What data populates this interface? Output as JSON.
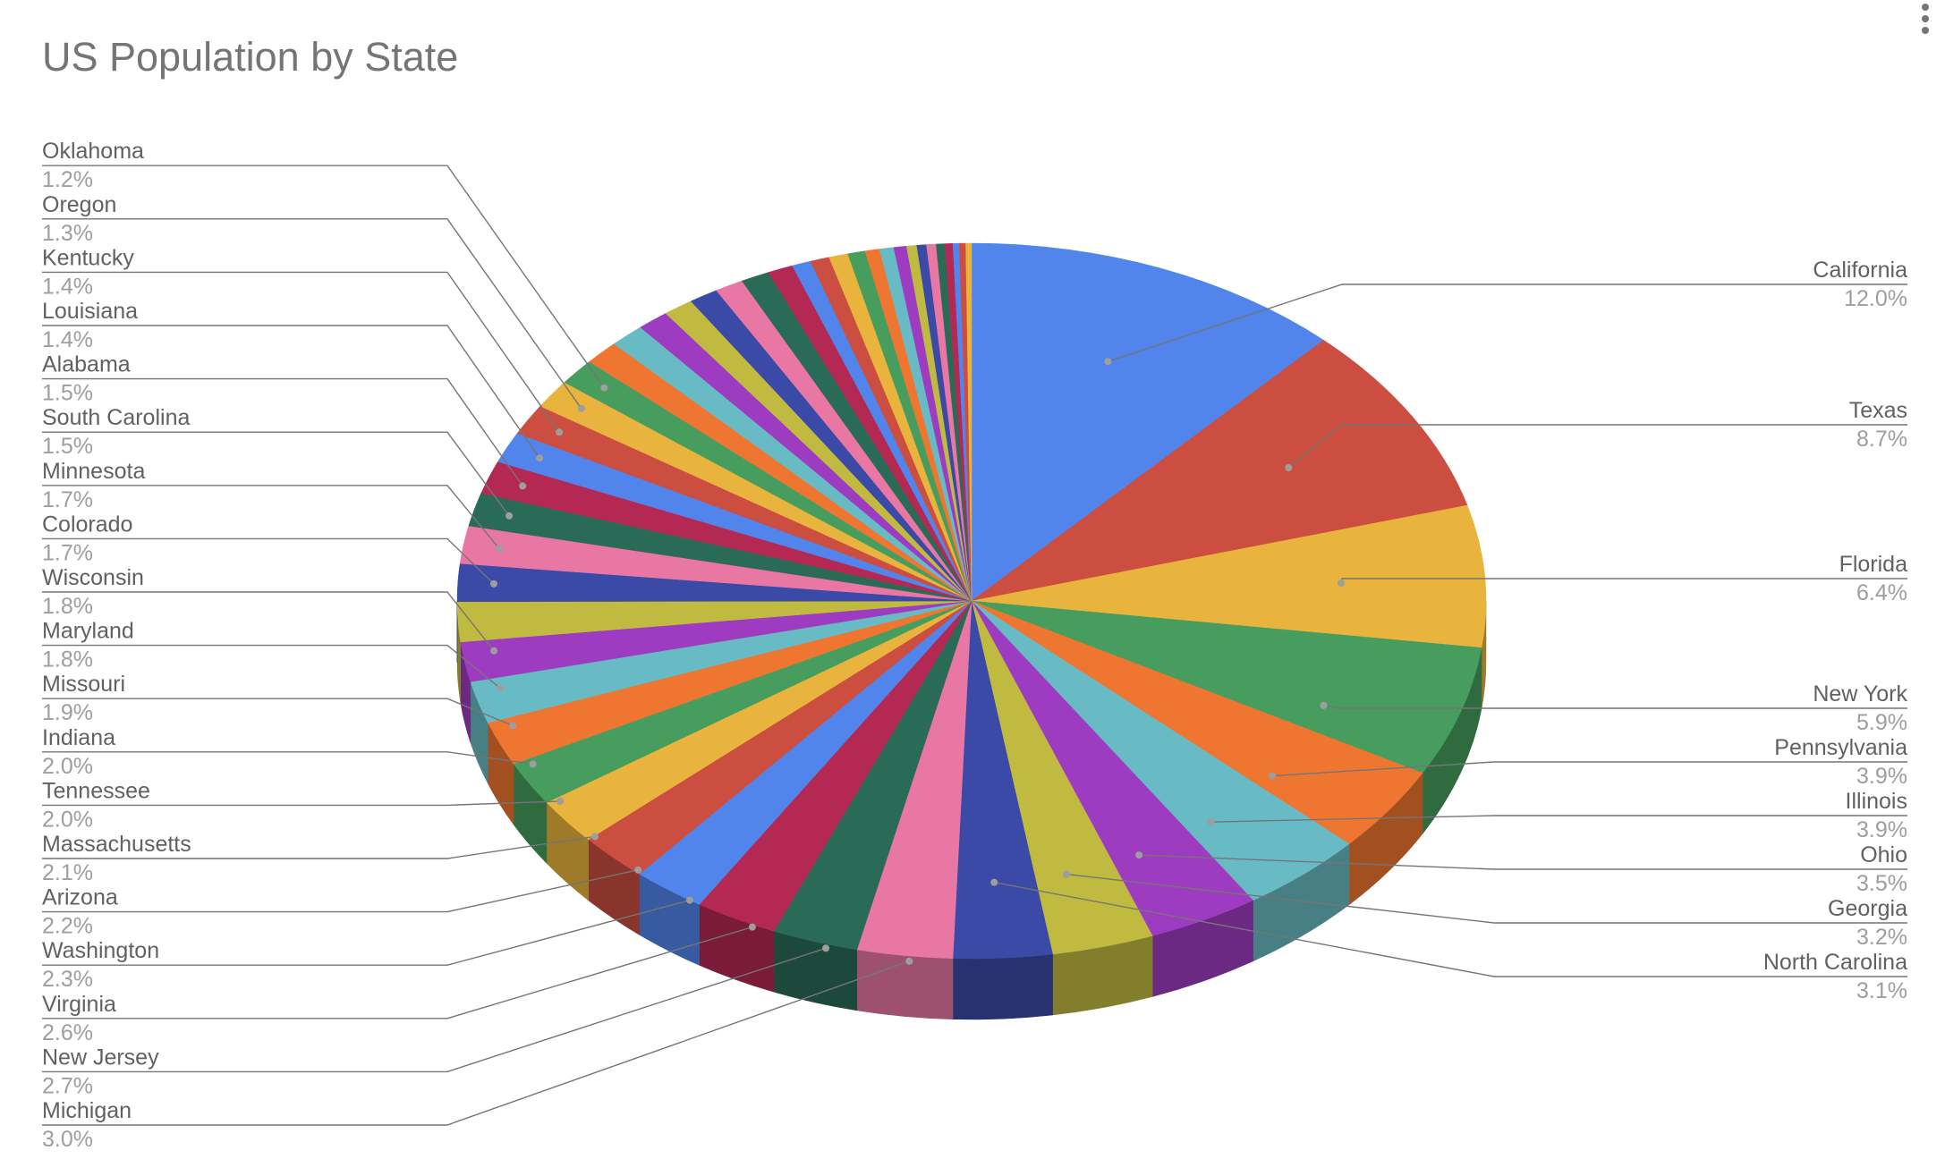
{
  "chart_data": {
    "type": "pie",
    "variant": "3d",
    "title": "US Population by State",
    "legend_placement": "labels with leader lines",
    "slices": [
      {
        "label": "California",
        "value": 12.0,
        "value_text": "12.0%",
        "color": "#5185EB"
      },
      {
        "label": "Texas",
        "value": 8.7,
        "value_text": "8.7%",
        "color": "#CB4E40"
      },
      {
        "label": "Florida",
        "value": 6.4,
        "value_text": "6.4%",
        "color": "#E9B43D"
      },
      {
        "label": "New York",
        "value": 5.9,
        "value_text": "5.9%",
        "color": "#479D5E"
      },
      {
        "label": "Pennsylvania",
        "value": 3.9,
        "value_text": "3.9%",
        "color": "#EF7630"
      },
      {
        "label": "Illinois",
        "value": 3.9,
        "value_text": "3.9%",
        "color": "#68BBC4"
      },
      {
        "label": "Ohio",
        "value": 3.5,
        "value_text": "3.5%",
        "color": "#9E3CC1"
      },
      {
        "label": "Georgia",
        "value": 3.2,
        "value_text": "3.2%",
        "color": "#C1BA40"
      },
      {
        "label": "North Carolina",
        "value": 3.1,
        "value_text": "3.1%",
        "color": "#3B4AA6"
      },
      {
        "label": "Michigan",
        "value": 3.0,
        "value_text": "3.0%",
        "color": "#E977A3"
      },
      {
        "label": "New Jersey",
        "value": 2.7,
        "value_text": "2.7%",
        "color": "#2A6B58"
      },
      {
        "label": "Virginia",
        "value": 2.6,
        "value_text": "2.6%",
        "color": "#B42954"
      },
      {
        "label": "Washington",
        "value": 2.3,
        "value_text": "2.3%",
        "color": "#5185EB"
      },
      {
        "label": "Arizona",
        "value": 2.2,
        "value_text": "2.2%",
        "color": "#CB4E40"
      },
      {
        "label": "Massachusetts",
        "value": 2.1,
        "value_text": "2.1%",
        "color": "#E9B43D"
      },
      {
        "label": "Tennessee",
        "value": 2.0,
        "value_text": "2.0%",
        "color": "#479D5E"
      },
      {
        "label": "Indiana",
        "value": 2.0,
        "value_text": "2.0%",
        "color": "#EF7630"
      },
      {
        "label": "Missouri",
        "value": 1.9,
        "value_text": "1.9%",
        "color": "#68BBC4"
      },
      {
        "label": "Maryland",
        "value": 1.8,
        "value_text": "1.8%",
        "color": "#9E3CC1"
      },
      {
        "label": "Wisconsin",
        "value": 1.8,
        "value_text": "1.8%",
        "color": "#C1BA40"
      },
      {
        "label": "Colorado",
        "value": 1.7,
        "value_text": "1.7%",
        "color": "#3B4AA6"
      },
      {
        "label": "Minnesota",
        "value": 1.7,
        "value_text": "1.7%",
        "color": "#E977A3"
      },
      {
        "label": "South Carolina",
        "value": 1.5,
        "value_text": "1.5%",
        "color": "#2A6B58"
      },
      {
        "label": "Alabama",
        "value": 1.5,
        "value_text": "1.5%",
        "color": "#B42954"
      },
      {
        "label": "Louisiana",
        "value": 1.4,
        "value_text": "1.4%",
        "color": "#5185EB"
      },
      {
        "label": "Kentucky",
        "value": 1.4,
        "value_text": "1.4%",
        "color": "#CB4E40"
      },
      {
        "label": "Oregon",
        "value": 1.3,
        "value_text": "1.3%",
        "color": "#E9B43D"
      },
      {
        "label": "Oklahoma",
        "value": 1.2,
        "value_text": "1.2%",
        "color": "#479D5E"
      },
      {
        "label": "",
        "value": 1.1,
        "color": "#EF7630"
      },
      {
        "label": "",
        "value": 1.1,
        "color": "#68BBC4"
      },
      {
        "label": "",
        "value": 1.0,
        "color": "#9E3CC1"
      },
      {
        "label": "",
        "value": 0.95,
        "color": "#C1BA40"
      },
      {
        "label": "",
        "value": 0.92,
        "color": "#3B4AA6"
      },
      {
        "label": "",
        "value": 0.9,
        "color": "#E977A3"
      },
      {
        "label": "",
        "value": 0.9,
        "color": "#2A6B58"
      },
      {
        "label": "",
        "value": 0.8,
        "color": "#B42954"
      },
      {
        "label": "",
        "value": 0.6,
        "color": "#5185EB"
      },
      {
        "label": "",
        "value": 0.6,
        "color": "#CB4E40"
      },
      {
        "label": "",
        "value": 0.6,
        "color": "#E9B43D"
      },
      {
        "label": "",
        "value": 0.55,
        "color": "#479D5E"
      },
      {
        "label": "",
        "value": 0.45,
        "color": "#EF7630"
      },
      {
        "label": "",
        "value": 0.45,
        "color": "#68BBC4"
      },
      {
        "label": "",
        "value": 0.4,
        "color": "#9E3CC1"
      },
      {
        "label": "",
        "value": 0.32,
        "color": "#C1BA40"
      },
      {
        "label": "",
        "value": 0.3,
        "color": "#3B4AA6"
      },
      {
        "label": "",
        "value": 0.3,
        "color": "#E977A3"
      },
      {
        "label": "",
        "value": 0.27,
        "color": "#2A6B58"
      },
      {
        "label": "",
        "value": 0.25,
        "color": "#B42954"
      },
      {
        "label": "",
        "value": 0.2,
        "color": "#5185EB"
      },
      {
        "label": "",
        "value": 0.2,
        "color": "#CB4E40"
      },
      {
        "label": "",
        "value": 0.18,
        "color": "#E9B43D"
      }
    ]
  }
}
